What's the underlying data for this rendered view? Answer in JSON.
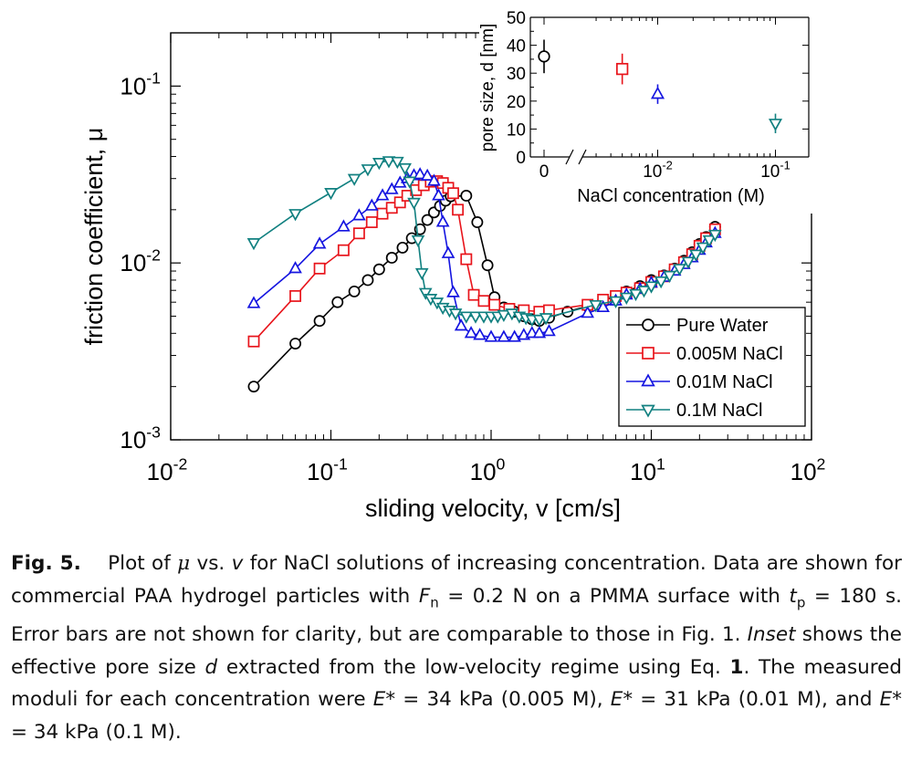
{
  "chart_data": [
    {
      "type": "scatter",
      "x_scale": "log",
      "y_scale": "log",
      "xlim": [
        0.01,
        100
      ],
      "ylim": [
        0.001,
        0.2
      ],
      "x_ticks": [
        {
          "value": 0.01,
          "base": "10",
          "exp": "-2"
        },
        {
          "value": 0.1,
          "base": "10",
          "exp": "-1"
        },
        {
          "value": 1,
          "base": "10",
          "exp": "0"
        },
        {
          "value": 10,
          "base": "10",
          "exp": "1"
        },
        {
          "value": 100,
          "base": "10",
          "exp": "2"
        }
      ],
      "y_ticks": [
        {
          "value": 0.001,
          "base": "10",
          "exp": "-3"
        },
        {
          "value": 0.01,
          "base": "10",
          "exp": "-2"
        },
        {
          "value": 0.1,
          "base": "10",
          "exp": "-1"
        }
      ],
      "xlabel": "sliding velocity, v  [cm/s]",
      "ylabel": "friction coefficient, μ",
      "legend_position": "bottom-right",
      "series": [
        {
          "name": "Pure Water",
          "marker": "circle",
          "color": "#000000",
          "points": [
            [
              0.033,
              0.002
            ],
            [
              0.06,
              0.0035
            ],
            [
              0.085,
              0.0047
            ],
            [
              0.11,
              0.006
            ],
            [
              0.14,
              0.0069
            ],
            [
              0.17,
              0.008
            ],
            [
              0.2,
              0.0092
            ],
            [
              0.24,
              0.0107
            ],
            [
              0.28,
              0.0122
            ],
            [
              0.32,
              0.0138
            ],
            [
              0.36,
              0.0155
            ],
            [
              0.4,
              0.0175
            ],
            [
              0.44,
              0.0193
            ],
            [
              0.48,
              0.021
            ],
            [
              0.52,
              0.0225
            ],
            [
              0.56,
              0.0238
            ],
            [
              0.7,
              0.024
            ],
            [
              0.82,
              0.017
            ],
            [
              0.95,
              0.0097
            ],
            [
              1.05,
              0.0064
            ],
            [
              1.2,
              0.0056
            ],
            [
              1.4,
              0.0053
            ],
            [
              1.6,
              0.005
            ],
            [
              1.8,
              0.0048
            ],
            [
              2.0,
              0.0047
            ],
            [
              2.3,
              0.0049
            ],
            [
              3.0,
              0.0053
            ],
            [
              4.0,
              0.0057
            ],
            [
              5.0,
              0.0061
            ],
            [
              6.0,
              0.0065
            ],
            [
              7.0,
              0.0069
            ],
            [
              8.5,
              0.0074
            ],
            [
              10,
              0.008
            ],
            [
              12,
              0.0085
            ],
            [
              14,
              0.0093
            ],
            [
              16,
              0.0103
            ],
            [
              18,
              0.0115
            ],
            [
              20,
              0.0128
            ],
            [
              22,
              0.014
            ],
            [
              25,
              0.016
            ]
          ]
        },
        {
          "name": "0.005M NaCl",
          "marker": "square",
          "color": "#e8141b",
          "points": [
            [
              0.033,
              0.0036
            ],
            [
              0.06,
              0.0065
            ],
            [
              0.085,
              0.0093
            ],
            [
              0.12,
              0.0118
            ],
            [
              0.15,
              0.0147
            ],
            [
              0.18,
              0.017
            ],
            [
              0.21,
              0.019
            ],
            [
              0.24,
              0.0205
            ],
            [
              0.27,
              0.022
            ],
            [
              0.3,
              0.024
            ],
            [
              0.34,
              0.0258
            ],
            [
              0.38,
              0.0275
            ],
            [
              0.42,
              0.0288
            ],
            [
              0.46,
              0.029
            ],
            [
              0.5,
              0.0283
            ],
            [
              0.54,
              0.0266
            ],
            [
              0.58,
              0.0248
            ],
            [
              0.62,
              0.02
            ],
            [
              0.7,
              0.0105
            ],
            [
              0.78,
              0.0066
            ],
            [
              0.9,
              0.0061
            ],
            [
              1.05,
              0.0058
            ],
            [
              1.3,
              0.0055
            ],
            [
              1.6,
              0.0054
            ],
            [
              2.0,
              0.0053
            ],
            [
              2.3,
              0.0054
            ],
            [
              4.0,
              0.0058
            ],
            [
              5.0,
              0.0062
            ],
            [
              6.0,
              0.0065
            ],
            [
              7.0,
              0.0068
            ],
            [
              8.5,
              0.0072
            ],
            [
              10,
              0.0078
            ],
            [
              12,
              0.0084
            ],
            [
              14,
              0.0092
            ],
            [
              16,
              0.0101
            ],
            [
              18,
              0.0112
            ],
            [
              20,
              0.0125
            ],
            [
              22,
              0.0138
            ],
            [
              25,
              0.0155
            ]
          ]
        },
        {
          "name": "0.01M NaCl",
          "marker": "triangle-up",
          "color": "#1515e0",
          "points": [
            [
              0.033,
              0.0059
            ],
            [
              0.06,
              0.0093
            ],
            [
              0.085,
              0.0128
            ],
            [
              0.12,
              0.016
            ],
            [
              0.15,
              0.0185
            ],
            [
              0.18,
              0.021
            ],
            [
              0.21,
              0.024
            ],
            [
              0.24,
              0.026
            ],
            [
              0.27,
              0.0283
            ],
            [
              0.3,
              0.03
            ],
            [
              0.33,
              0.0312
            ],
            [
              0.36,
              0.0316
            ],
            [
              0.4,
              0.031
            ],
            [
              0.44,
              0.029
            ],
            [
              0.47,
              0.024
            ],
            [
              0.5,
              0.017
            ],
            [
              0.54,
              0.0113
            ],
            [
              0.58,
              0.0068
            ],
            [
              0.65,
              0.0044
            ],
            [
              0.75,
              0.004
            ],
            [
              0.85,
              0.0039
            ],
            [
              1.0,
              0.0038
            ],
            [
              1.2,
              0.0038
            ],
            [
              1.4,
              0.0038
            ],
            [
              1.6,
              0.0039
            ],
            [
              1.8,
              0.004
            ],
            [
              2.0,
              0.004
            ],
            [
              2.3,
              0.0041
            ],
            [
              4.0,
              0.0052
            ],
            [
              5.0,
              0.0056
            ],
            [
              6.0,
              0.0061
            ],
            [
              7.0,
              0.0066
            ],
            [
              8.5,
              0.0071
            ],
            [
              10,
              0.0077
            ],
            [
              12,
              0.0083
            ],
            [
              14,
              0.009
            ],
            [
              16,
              0.0098
            ],
            [
              18,
              0.0107
            ],
            [
              20,
              0.0118
            ],
            [
              22,
              0.013
            ],
            [
              25,
              0.0147
            ]
          ]
        },
        {
          "name": "0.1M NaCl",
          "marker": "triangle-down",
          "color": "#118080",
          "points": [
            [
              0.033,
              0.013
            ],
            [
              0.06,
              0.019
            ],
            [
              0.1,
              0.025
            ],
            [
              0.14,
              0.03
            ],
            [
              0.17,
              0.034
            ],
            [
              0.2,
              0.037
            ],
            [
              0.23,
              0.0378
            ],
            [
              0.26,
              0.0375
            ],
            [
              0.29,
              0.0345
            ],
            [
              0.31,
              0.029
            ],
            [
              0.33,
              0.022
            ],
            [
              0.35,
              0.0135
            ],
            [
              0.37,
              0.0088
            ],
            [
              0.39,
              0.0068
            ],
            [
              0.42,
              0.0063
            ],
            [
              0.46,
              0.006
            ],
            [
              0.5,
              0.0056
            ],
            [
              0.55,
              0.0054
            ],
            [
              0.6,
              0.0052
            ],
            [
              0.7,
              0.005
            ],
            [
              0.8,
              0.005
            ],
            [
              0.9,
              0.005
            ],
            [
              1.0,
              0.005
            ],
            [
              1.1,
              0.005
            ],
            [
              1.2,
              0.0051
            ],
            [
              1.35,
              0.0052
            ],
            [
              1.5,
              0.005
            ],
            [
              1.65,
              0.0049
            ],
            [
              1.8,
              0.0048
            ],
            [
              2.0,
              0.0048
            ],
            [
              2.2,
              0.0049
            ],
            [
              4.5,
              0.0058
            ],
            [
              6.0,
              0.0061
            ],
            [
              7.0,
              0.0064
            ],
            [
              8.0,
              0.0067
            ],
            [
              9.0,
              0.007
            ],
            [
              10,
              0.0074
            ],
            [
              11.5,
              0.0079
            ],
            [
              13,
              0.0085
            ],
            [
              15,
              0.0093
            ],
            [
              17,
              0.0102
            ],
            [
              19,
              0.0112
            ],
            [
              21,
              0.0123
            ],
            [
              23,
              0.0135
            ],
            [
              25,
              0.0145
            ]
          ]
        }
      ]
    },
    {
      "type": "scatter",
      "role": "inset",
      "ylim": [
        0,
        50
      ],
      "y_ticks": [
        "0",
        "10",
        "20",
        "30",
        "40",
        "50"
      ],
      "x_ticks": [
        {
          "value": 0,
          "label": "0"
        },
        {
          "value": 0.01,
          "base": "10",
          "exp": "-2"
        },
        {
          "value": 0.1,
          "base": "10",
          "exp": "-1"
        }
      ],
      "xlabel": "NaCl concentration (M)",
      "ylabel": "pore size, d [nm]",
      "points": [
        {
          "x": 0,
          "y": 36,
          "err": 6,
          "marker": "circle",
          "color": "#000000"
        },
        {
          "x": 0.005,
          "y": 31.5,
          "err": 5.5,
          "marker": "square",
          "color": "#e8141b"
        },
        {
          "x": 0.01,
          "y": 22.5,
          "err": 3.5,
          "marker": "triangle-up",
          "color": "#1515e0"
        },
        {
          "x": 0.1,
          "y": 12,
          "err": 3.5,
          "marker": "triangle-down",
          "color": "#118080"
        }
      ]
    }
  ],
  "caption": {
    "fig_label": "Fig. 5.",
    "seg1": "Plot of ",
    "mu": "μ",
    "seg2": " vs. ",
    "v": "v",
    "seg3": " for NaCl solutions of increasing concentration. Data are shown for commercial PAA hydrogel particles with ",
    "F": "F",
    "F_sub": "n",
    "seg4": " = 0.2 N on a PMMA surface with ",
    "t": "t",
    "t_sub": "p",
    "seg5": " = 180 s. Error bars are not shown for clarity, but are comparable to those in Fig. 1. ",
    "inset_word": "Inset",
    "seg6": " shows the effective pore size ",
    "d": "d",
    "seg7": " extracted from the low-velocity regime using Eq. ",
    "eq_num": "1",
    "seg8": ". The measured moduli for each concentration were ",
    "E": "E",
    "e1": "* = 34 kPa (0.005 M), ",
    "e2": "* = 31 kPa (0.01 M), and ",
    "e3": "* = 34 kPa (0.1 M)."
  }
}
